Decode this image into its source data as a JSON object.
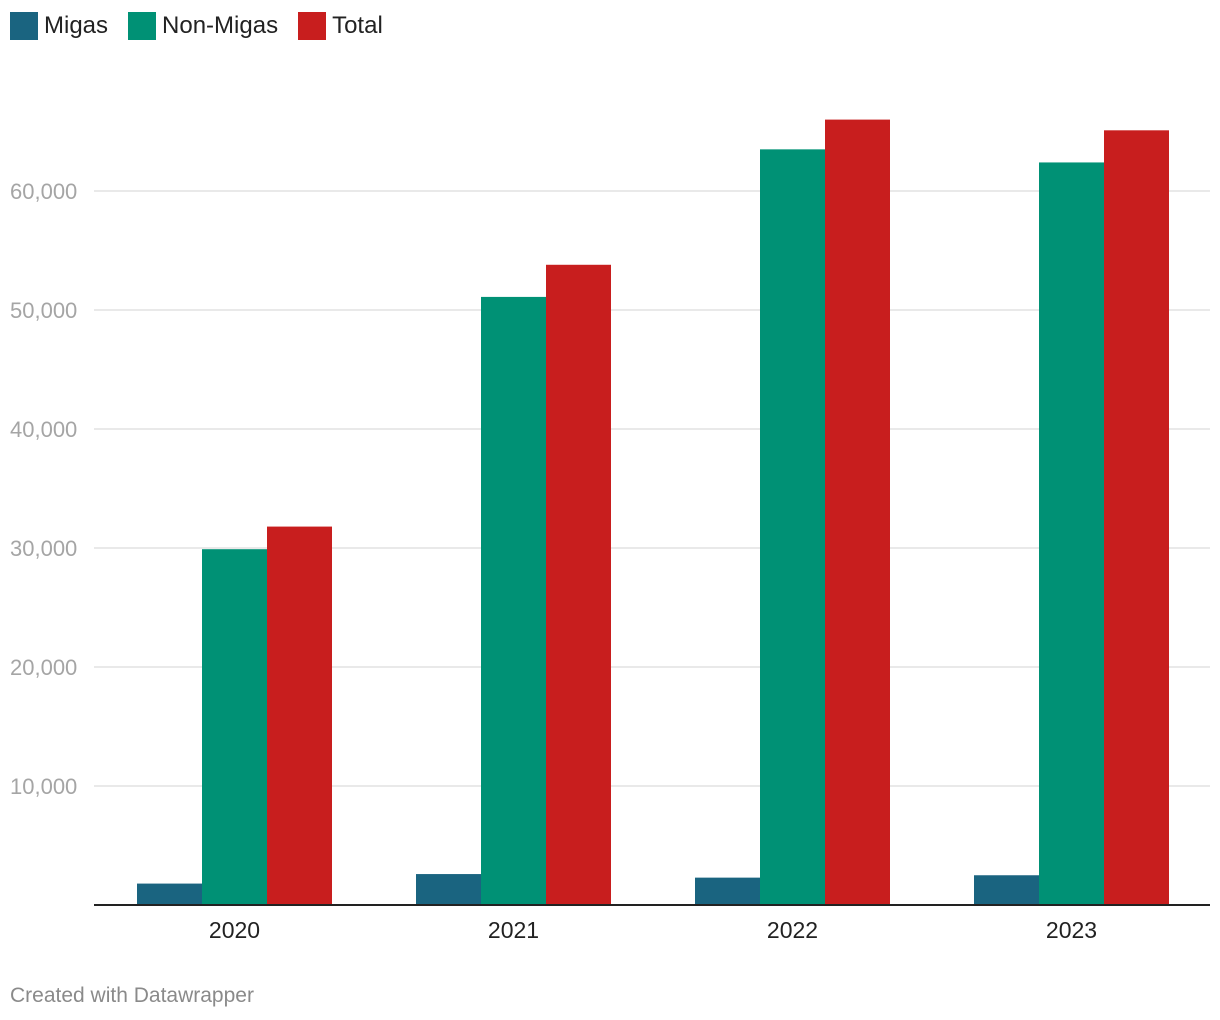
{
  "legend": {
    "items": [
      {
        "label": "Migas",
        "color": "#1a6480"
      },
      {
        "label": "Non-Migas",
        "color": "#009175"
      },
      {
        "label": "Total",
        "color": "#c81e1e"
      }
    ]
  },
  "credit": "Created with Datawrapper",
  "chart_data": {
    "type": "bar",
    "categories": [
      "2020",
      "2021",
      "2022",
      "2023"
    ],
    "series": [
      {
        "name": "Migas",
        "color": "#1a6480",
        "values": [
          1800,
          2600,
          2300,
          2500
        ]
      },
      {
        "name": "Non-Migas",
        "color": "#009175",
        "values": [
          29900,
          51100,
          63500,
          62400
        ]
      },
      {
        "name": "Total",
        "color": "#c81e1e",
        "values": [
          31800,
          53800,
          66000,
          65100
        ]
      }
    ],
    "yticks": [
      10000,
      20000,
      30000,
      40000,
      50000,
      60000
    ],
    "ytick_labels": [
      "10,000",
      "20,000",
      "30,000",
      "40,000",
      "50,000",
      "60,000"
    ],
    "ylim": [
      0,
      70000
    ],
    "grid": true,
    "legend_position": "top-left",
    "title": "",
    "xlabel": "",
    "ylabel": ""
  }
}
